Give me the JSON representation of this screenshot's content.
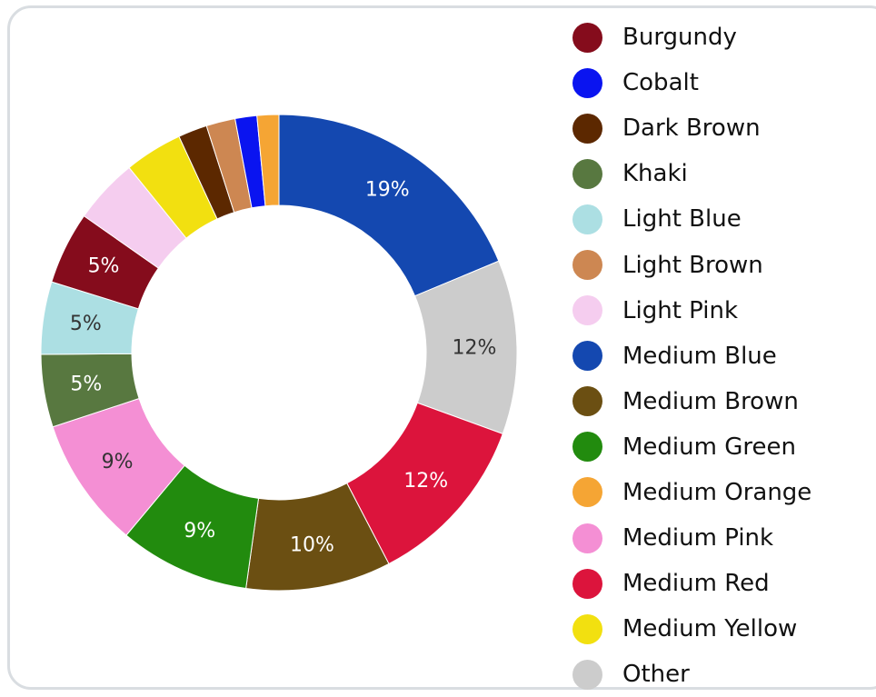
{
  "chart_data": {
    "type": "donut",
    "title": "",
    "legend_placement": "right",
    "slices": [
      {
        "name": "Medium Blue",
        "value": 19,
        "label": "19%",
        "color": "#1448b0",
        "label_color": "#ffffff"
      },
      {
        "name": "Other",
        "value": 12,
        "label": "12%",
        "color": "#cccccc",
        "label_color": "#333333"
      },
      {
        "name": "Medium Red",
        "value": 12,
        "label": "12%",
        "color": "#dc143c",
        "label_color": "#ffffff"
      },
      {
        "name": "Medium Brown",
        "value": 10,
        "label": "10%",
        "color": "#6b4f12",
        "label_color": "#ffffff"
      },
      {
        "name": "Medium Green",
        "value": 9,
        "label": "9%",
        "color": "#228b0e",
        "label_color": "#ffffff"
      },
      {
        "name": "Medium Pink",
        "value": 9,
        "label": "9%",
        "color": "#f48fd4",
        "label_color": "#333333"
      },
      {
        "name": "Khaki",
        "value": 5,
        "label": "5%",
        "color": "#587840",
        "label_color": "#ffffff"
      },
      {
        "name": "Light Blue",
        "value": 5,
        "label": "5%",
        "color": "#acdfe3",
        "label_color": "#333333"
      },
      {
        "name": "Burgundy",
        "value": 5,
        "label": "5%",
        "color": "#850c1c",
        "label_color": "#ffffff"
      },
      {
        "name": "Light Pink",
        "value": 4.5,
        "label": "",
        "color": "#f5cdef",
        "label_color": "#333333"
      },
      {
        "name": "Medium Yellow",
        "value": 4,
        "label": "",
        "color": "#f2e010",
        "label_color": "#333333"
      },
      {
        "name": "Dark Brown",
        "value": 2,
        "label": "",
        "color": "#5c2800",
        "label_color": "#ffffff"
      },
      {
        "name": "Light Brown",
        "value": 2,
        "label": "",
        "color": "#cd8752",
        "label_color": "#ffffff"
      },
      {
        "name": "Cobalt",
        "value": 1.5,
        "label": "",
        "color": "#0a14f0",
        "label_color": "#ffffff"
      },
      {
        "name": "Medium Orange",
        "value": 1.5,
        "label": "",
        "color": "#f5a534",
        "label_color": "#333333"
      }
    ]
  },
  "legend": [
    {
      "label": "Burgundy",
      "color": "#850c1c"
    },
    {
      "label": "Cobalt",
      "color": "#0a14f0"
    },
    {
      "label": "Dark Brown",
      "color": "#5c2800"
    },
    {
      "label": "Khaki",
      "color": "#587840"
    },
    {
      "label": "Light Blue",
      "color": "#acdfe3"
    },
    {
      "label": "Light Brown",
      "color": "#cd8752"
    },
    {
      "label": "Light Pink",
      "color": "#f5cdef"
    },
    {
      "label": "Medium Blue",
      "color": "#1448b0"
    },
    {
      "label": "Medium Brown",
      "color": "#6b4f12"
    },
    {
      "label": "Medium Green",
      "color": "#228b0e"
    },
    {
      "label": "Medium Orange",
      "color": "#f5a534"
    },
    {
      "label": "Medium Pink",
      "color": "#f48fd4"
    },
    {
      "label": "Medium Red",
      "color": "#dc143c"
    },
    {
      "label": "Medium Yellow",
      "color": "#f2e010"
    },
    {
      "label": "Other",
      "color": "#cccccc"
    }
  ]
}
